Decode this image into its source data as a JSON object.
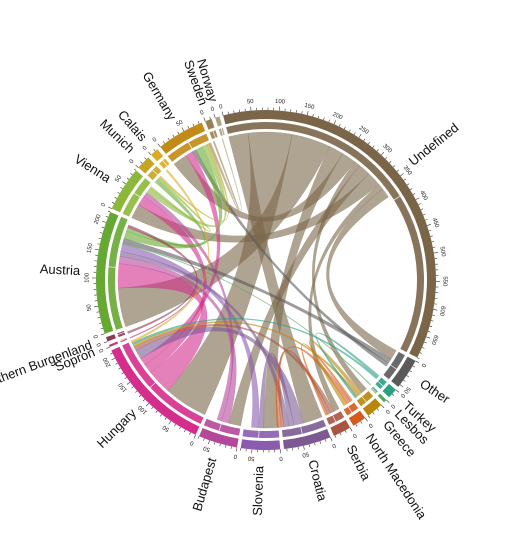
{
  "chart_data": {
    "type": "chord",
    "tick_step": 10,
    "label_step": 50,
    "sectors": [
      {
        "name": "Undefined",
        "value": 690,
        "color": "#7a6548"
      },
      {
        "name": "Other",
        "value": 55,
        "color": "#5a5a5a"
      },
      {
        "name": "Turkey",
        "value": 18,
        "color": "#2aa181"
      },
      {
        "name": "Lesbos",
        "value": 6,
        "color": "#51a85f"
      },
      {
        "name": "Greece",
        "value": 30,
        "color": "#b8860b"
      },
      {
        "name": "North Macedonia",
        "value": 25,
        "color": "#d45a1e"
      },
      {
        "name": "Serbia",
        "value": 32,
        "color": "#a9543f"
      },
      {
        "name": "Croatia",
        "value": 85,
        "color": "#7c5a91"
      },
      {
        "name": "Slovenia",
        "value": 70,
        "color": "#8b5bb0"
      },
      {
        "name": "Budapest",
        "value": 70,
        "color": "#b4489a"
      },
      {
        "name": "Hungary",
        "value": 215,
        "color": "#d42d8c"
      },
      {
        "name": "Sopron",
        "value": 4,
        "color": "#c03a6d"
      },
      {
        "name": "Northern Burgenland",
        "value": 8,
        "color": "#8a3a55"
      },
      {
        "name": "Austria",
        "value": 220,
        "color": "#66a832"
      },
      {
        "name": "Vienna",
        "value": 80,
        "color": "#8cb83a"
      },
      {
        "name": "Munich",
        "value": 25,
        "color": "#c6a426"
      },
      {
        "name": "Calais",
        "value": 15,
        "color": "#d9ac20"
      },
      {
        "name": "Germany",
        "value": 85,
        "color": "#c28a16"
      },
      {
        "name": "Sweden",
        "value": 12,
        "color": "#9a8250"
      },
      {
        "name": "Norway",
        "value": 8,
        "color": "#b0a080"
      }
    ],
    "links": [
      {
        "source": "Undefined",
        "target": "Croatia",
        "value": 40
      },
      {
        "source": "Undefined",
        "target": "Hungary",
        "value": 90
      },
      {
        "source": "Undefined",
        "target": "Austria",
        "value": 80
      },
      {
        "source": "Undefined",
        "target": "Slovenia",
        "value": 30
      },
      {
        "source": "Undefined",
        "target": "Germany",
        "value": 30
      },
      {
        "source": "Undefined",
        "target": "Greece",
        "value": 12
      },
      {
        "source": "Undefined",
        "target": "Budapest",
        "value": 25
      },
      {
        "source": "Undefined",
        "target": "Vienna",
        "value": 30
      },
      {
        "source": "Undefined",
        "target": "Serbia",
        "value": 12
      },
      {
        "source": "Undefined",
        "target": "Other",
        "value": 20
      },
      {
        "source": "Hungary",
        "target": "Austria",
        "value": 50
      },
      {
        "source": "Hungary",
        "target": "Vienna",
        "value": 20
      },
      {
        "source": "Hungary",
        "target": "Germany",
        "value": 15
      },
      {
        "source": "Budapest",
        "target": "Austria",
        "value": 15
      },
      {
        "source": "Budapest",
        "target": "Vienna",
        "value": 10
      },
      {
        "source": "Croatia",
        "target": "Hungary",
        "value": 20
      },
      {
        "source": "Croatia",
        "target": "Slovenia",
        "value": 10
      },
      {
        "source": "Croatia",
        "target": "Austria",
        "value": 10
      },
      {
        "source": "Slovenia",
        "target": "Austria",
        "value": 15
      },
      {
        "source": "Serbia",
        "target": "Hungary",
        "value": 8
      },
      {
        "source": "Serbia",
        "target": "Croatia",
        "value": 6
      },
      {
        "source": "North Macedonia",
        "target": "Serbia",
        "value": 5
      },
      {
        "source": "North Macedonia",
        "target": "Croatia",
        "value": 8
      },
      {
        "source": "Greece",
        "target": "North Macedonia",
        "value": 8
      },
      {
        "source": "Greece",
        "target": "Hungary",
        "value": 5
      },
      {
        "source": "Turkey",
        "target": "Greece",
        "value": 5
      },
      {
        "source": "Turkey",
        "target": "Hungary",
        "value": 4
      },
      {
        "source": "Lesbos",
        "target": "Austria",
        "value": 2
      },
      {
        "source": "Other",
        "target": "Austria",
        "value": 10
      },
      {
        "source": "Other",
        "target": "Germany",
        "value": 8
      },
      {
        "source": "Austria",
        "target": "Germany",
        "value": 15
      },
      {
        "source": "Austria",
        "target": "Munich",
        "value": 8
      },
      {
        "source": "Vienna",
        "target": "Germany",
        "value": 10
      },
      {
        "source": "Vienna",
        "target": "Munich",
        "value": 5
      },
      {
        "source": "Munich",
        "target": "Germany",
        "value": 4
      },
      {
        "source": "Calais",
        "target": "Hungary",
        "value": 4
      },
      {
        "source": "Sweden",
        "target": "Germany",
        "value": 3
      },
      {
        "source": "Norway",
        "target": "Germany",
        "value": 2
      },
      {
        "source": "Sopron",
        "target": "Austria",
        "value": 2
      },
      {
        "source": "Northern Burgenland",
        "target": "Austria",
        "value": 4
      }
    ]
  }
}
